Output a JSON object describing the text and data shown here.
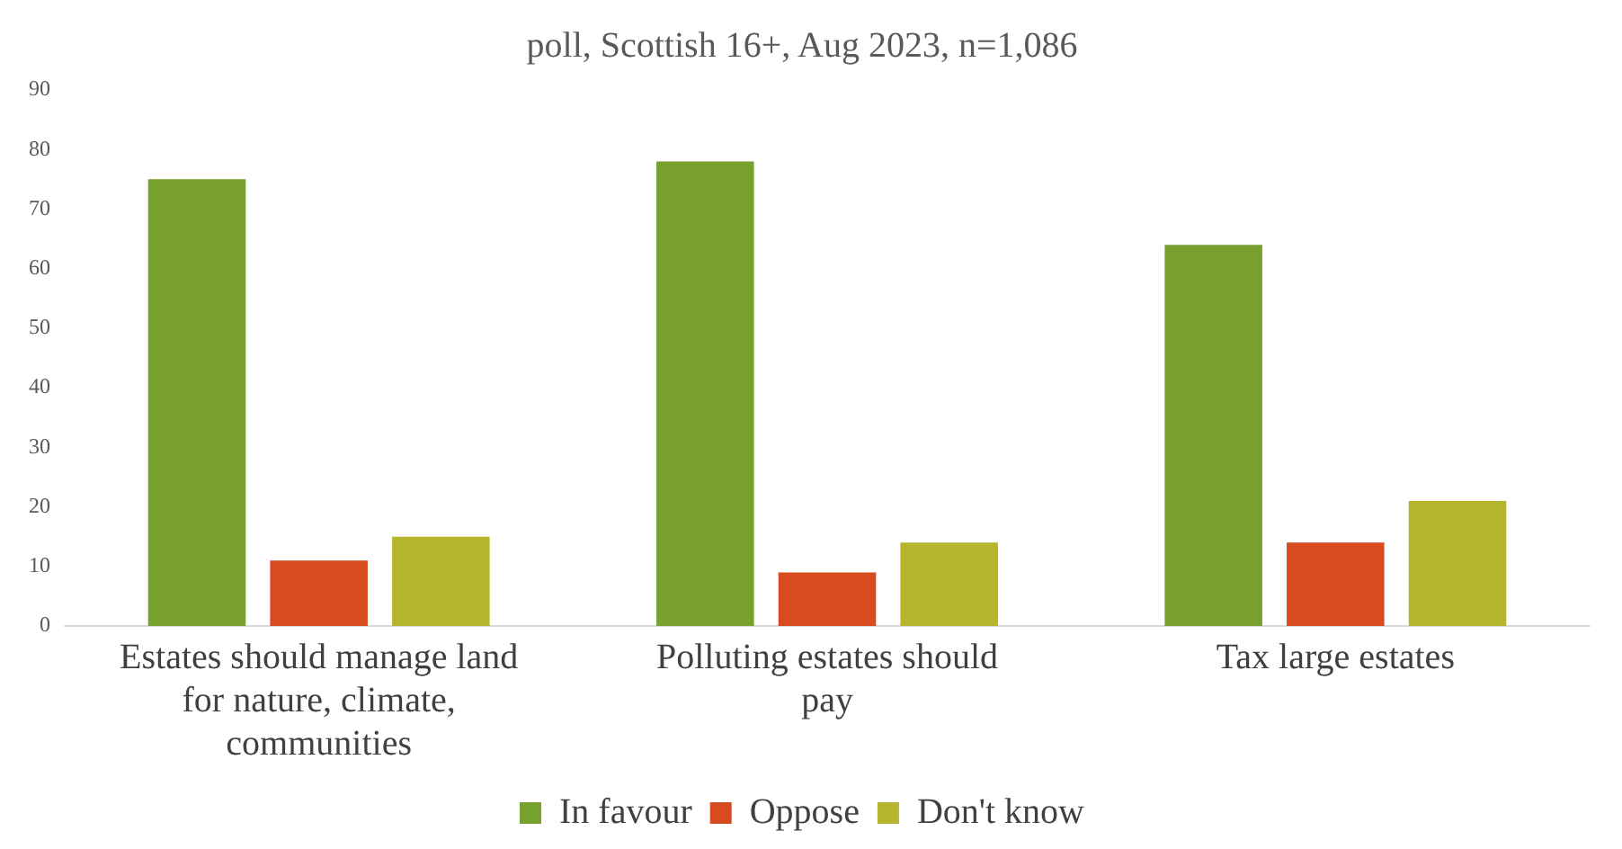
{
  "chart_data": {
    "type": "bar",
    "title": "poll, Scottish 16+, Aug 2023, n=1,086",
    "categories": [
      "Estates should manage land for nature, climate, communities",
      "Polluting estates should pay",
      "Tax large estates"
    ],
    "series": [
      {
        "name": "In favour",
        "color": "#77a02e",
        "values": [
          75,
          78,
          64
        ]
      },
      {
        "name": "Oppose",
        "color": "#d84a1f",
        "values": [
          11,
          9,
          14
        ]
      },
      {
        "name": "Don't know",
        "color": "#b5b52e",
        "values": [
          15,
          14,
          21
        ]
      }
    ],
    "ylim": [
      0,
      90
    ],
    "yticks": [
      0,
      10,
      20,
      30,
      40,
      50,
      60,
      70,
      80,
      90
    ],
    "grid": false,
    "legend": "bottom"
  }
}
